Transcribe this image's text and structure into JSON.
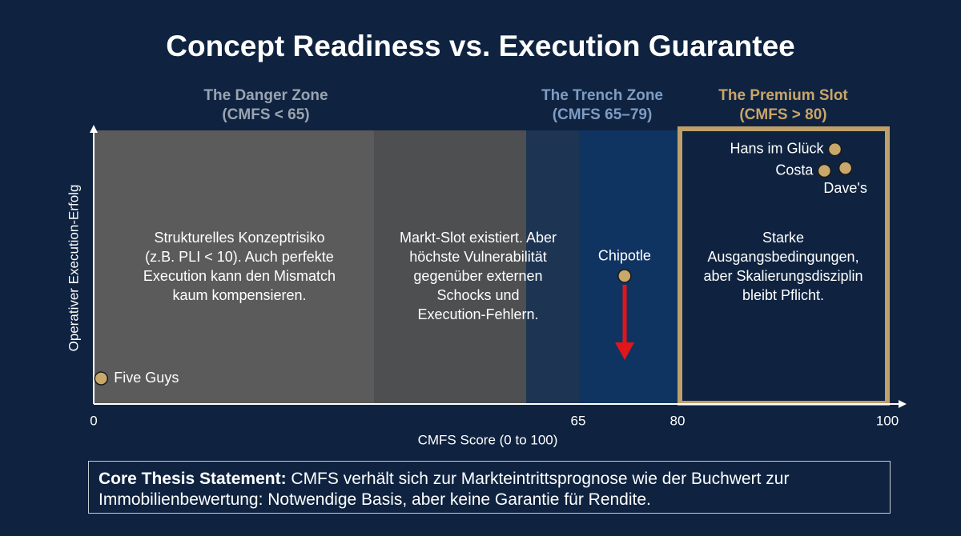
{
  "chart_data": {
    "type": "scatter",
    "title": "Concept Readiness vs. Execution Guarantee",
    "x_label": "CMFS Score (0 to 100)",
    "y_label": "Operativer Execution-Erfolg",
    "xlim": [
      0,
      100
    ],
    "xticks": [
      0,
      65,
      80,
      100
    ],
    "ylim": [
      0,
      100
    ],
    "zones": [
      {
        "name": "The Danger Zone",
        "range": "(CMFS < 65)",
        "color": "#9aa4b0"
      },
      {
        "name": "The Trench Zone",
        "range": "(CMFS 65–79)",
        "color": "#7f9cc4"
      },
      {
        "name": "The Premium Slot",
        "range": "(CMFS > 80)",
        "color": "#c8a56a"
      }
    ],
    "annotations": [
      [
        "Strukturelles Konzeptrisiko",
        "(z.B. PLI < 10). Auch perfekte",
        "Execution kann den Mismatch",
        "kaum kompensieren."
      ],
      [
        "Markt-Slot existiert. Aber",
        "höchste Vulnerabilität",
        "gegenüber externen",
        "Schocks und",
        "Execution-Fehlern."
      ],
      [
        "Starke",
        "Ausgangsbedingungen,",
        "aber Skalierungsdisziplin",
        "bleibt Pflicht."
      ]
    ],
    "series": [
      {
        "color": "#c9a86b",
        "labels": [
          "Five Guys",
          "Chipotle",
          "Hans im Glück",
          "Costa",
          "Dave's"
        ],
        "x": [
          1,
          72,
          95,
          94,
          96
        ],
        "values": [
          8,
          46,
          93,
          85,
          86
        ]
      }
    ],
    "thesis": {
      "lead": "Core Thesis Statement:",
      "text": " CMFS verhält sich zur Markteintrittsprognose wie der Buchwert zur Immobilienbewertung: Notwendige Basis, aber keine Garantie für Rendite."
    }
  }
}
